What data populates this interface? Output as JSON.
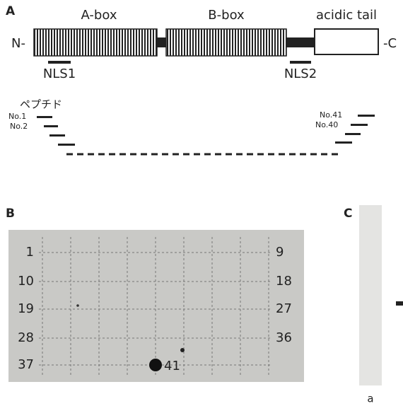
{
  "panel_a": {
    "label": "A",
    "domains": [
      "A-box",
      "B-box",
      "acidic tail"
    ],
    "n_term": "N-",
    "c_term": "-C",
    "nls": [
      "NLS1",
      "NLS2"
    ],
    "peptides_label": "ペプチド",
    "peptides_left": [
      "No.1",
      "No.2"
    ],
    "peptides_right": [
      "No.41",
      "No.40"
    ]
  },
  "panel_b": {
    "label": "B",
    "row_labels_left": [
      "1",
      "10",
      "19",
      "28",
      "37"
    ],
    "row_labels_right": [
      "9",
      "18",
      "27",
      "36"
    ],
    "spot_label": "41"
  },
  "panel_c": {
    "label": "C",
    "lane_label": "a"
  }
}
